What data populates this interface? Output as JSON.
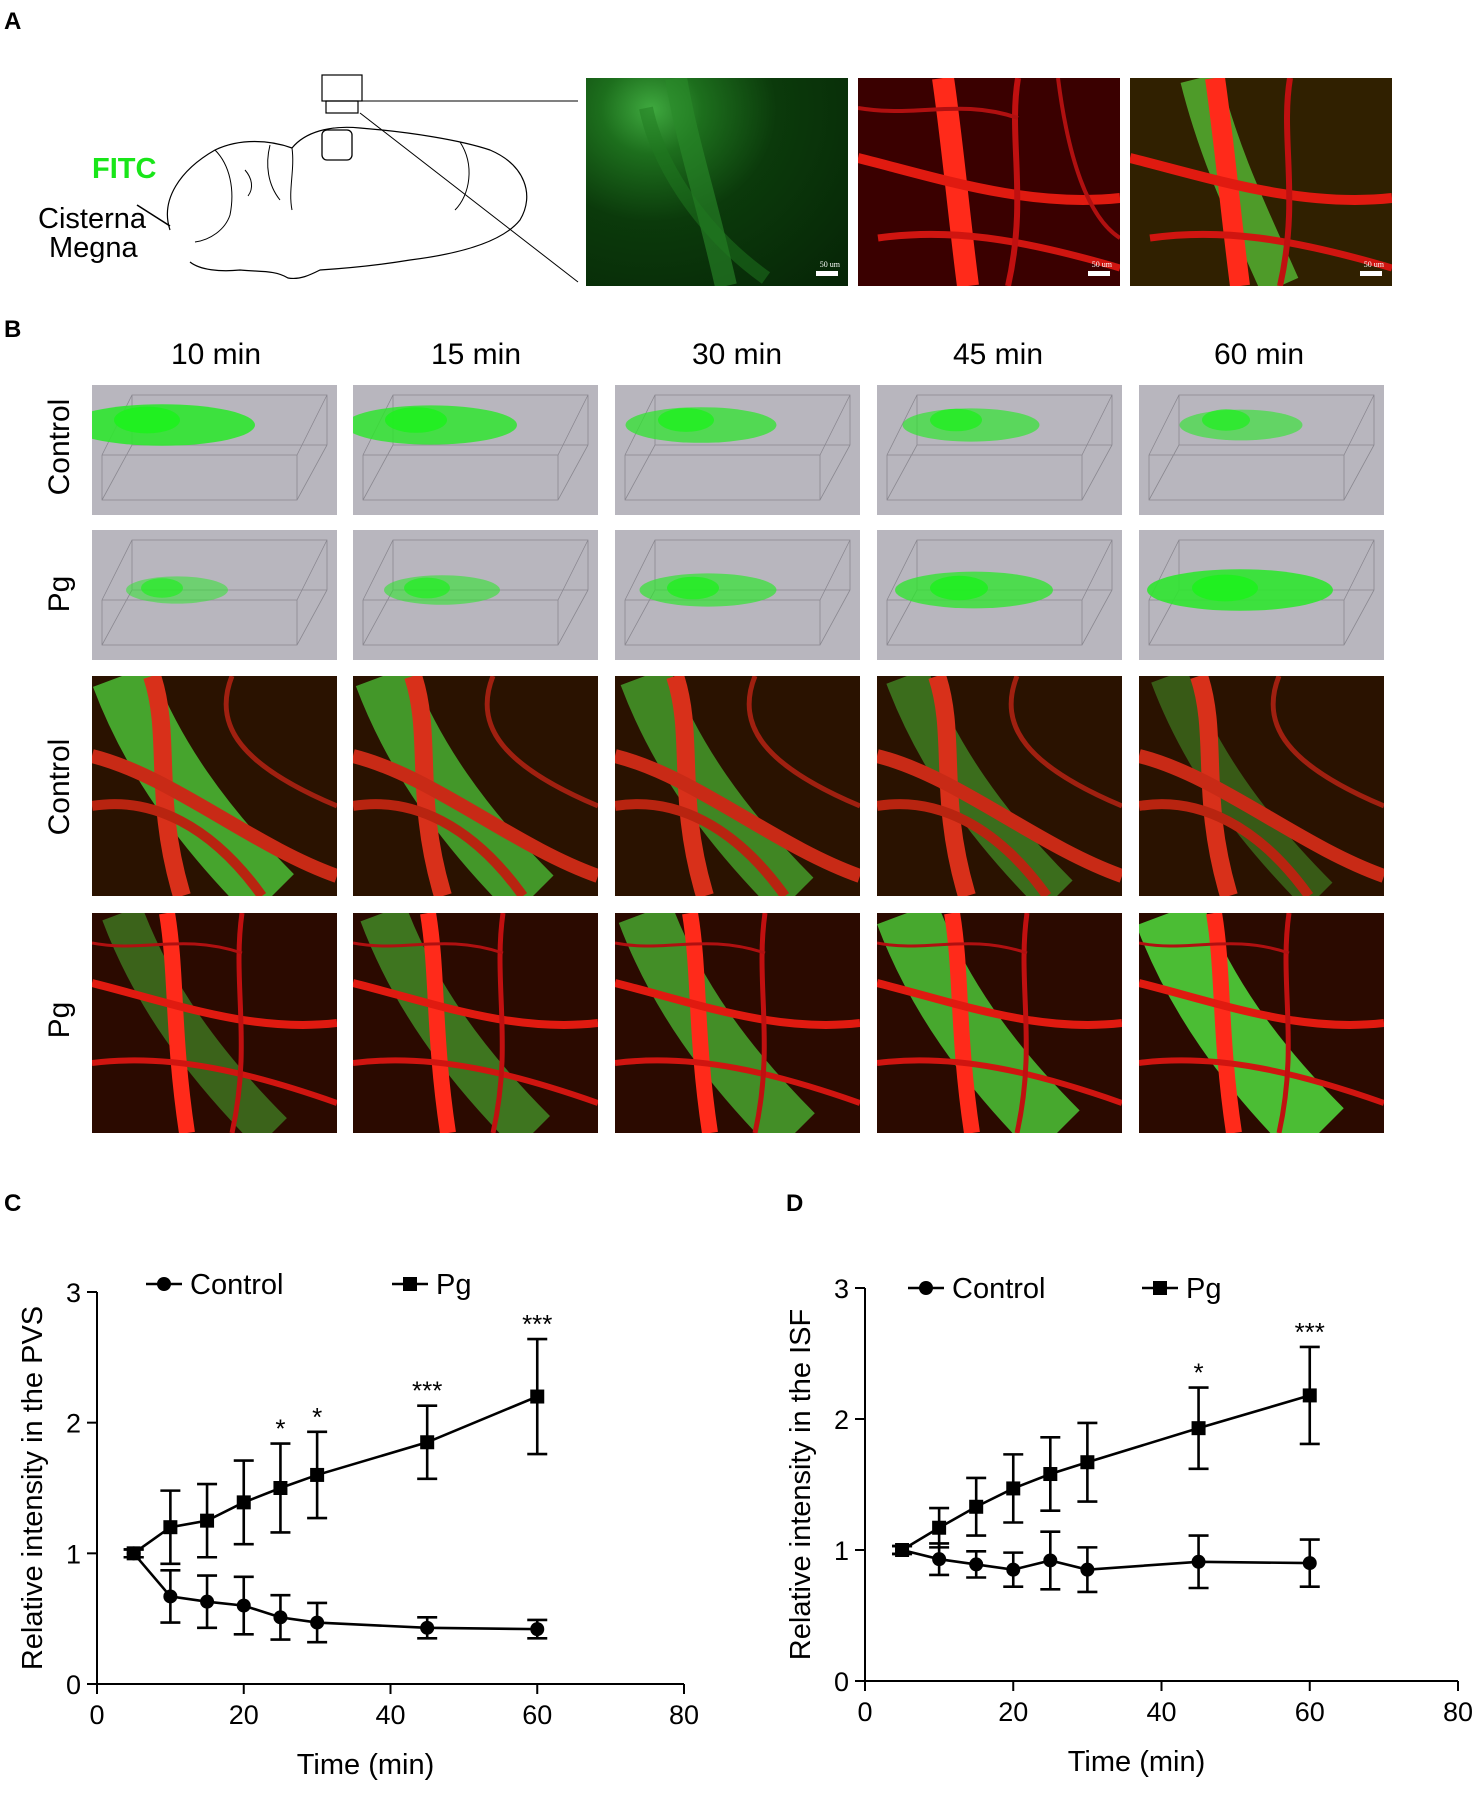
{
  "panels": {
    "a": "A",
    "b": "B",
    "c": "C",
    "d": "D"
  },
  "panel_a": {
    "fitc_label": "FITC",
    "cisterna_label_1": "Cisterna",
    "cisterna_label_2": "Megna",
    "scale_text": "50 um",
    "fitc_color": "#00e000"
  },
  "panel_b": {
    "time_points": [
      "10 min",
      "15 min",
      "30 min",
      "45 min",
      "60 min"
    ],
    "rows": [
      "Control",
      "Pg",
      "Control",
      "Pg"
    ]
  },
  "chart_data": [
    {
      "type": "line",
      "panel": "C",
      "xlabel": "Time (min)",
      "ylabel": "Relative intensity in the PVS",
      "xlim": [
        0,
        80
      ],
      "ylim": [
        0,
        3
      ],
      "xticks": [
        0,
        20,
        40,
        60,
        80
      ],
      "yticks": [
        0,
        1,
        2,
        3
      ],
      "legend": "top",
      "series": [
        {
          "name": "Control",
          "marker": "circle",
          "x": [
            5,
            10,
            15,
            20,
            25,
            30,
            45,
            60
          ],
          "y": [
            1.0,
            0.67,
            0.63,
            0.6,
            0.51,
            0.47,
            0.43,
            0.42
          ],
          "err": [
            0.03,
            0.2,
            0.2,
            0.22,
            0.17,
            0.15,
            0.08,
            0.07
          ]
        },
        {
          "name": "Pg",
          "marker": "square",
          "x": [
            5,
            10,
            15,
            20,
            25,
            30,
            45,
            60
          ],
          "y": [
            1.0,
            1.2,
            1.25,
            1.39,
            1.5,
            1.6,
            1.85,
            2.2
          ],
          "err": [
            0.03,
            0.28,
            0.28,
            0.32,
            0.34,
            0.33,
            0.28,
            0.44
          ]
        }
      ],
      "annotations": [
        {
          "x": 25,
          "text": "*"
        },
        {
          "x": 30,
          "text": "*"
        },
        {
          "x": 45,
          "text": "***"
        },
        {
          "x": 60,
          "text": "***"
        }
      ]
    },
    {
      "type": "line",
      "panel": "D",
      "xlabel": "Time (min)",
      "ylabel": "Relative intensity in the ISF",
      "xlim": [
        0,
        80
      ],
      "ylim": [
        0,
        3
      ],
      "xticks": [
        0,
        20,
        40,
        60,
        80
      ],
      "yticks": [
        0,
        1,
        2,
        3
      ],
      "legend": "top",
      "series": [
        {
          "name": "Control",
          "marker": "circle",
          "x": [
            5,
            10,
            15,
            20,
            25,
            30,
            45,
            60
          ],
          "y": [
            1.0,
            0.93,
            0.89,
            0.85,
            0.92,
            0.85,
            0.91,
            0.9
          ],
          "err": [
            0.03,
            0.12,
            0.1,
            0.13,
            0.22,
            0.17,
            0.2,
            0.18
          ]
        },
        {
          "name": "Pg",
          "marker": "square",
          "x": [
            5,
            10,
            15,
            20,
            25,
            30,
            45,
            60
          ],
          "y": [
            1.0,
            1.17,
            1.33,
            1.47,
            1.58,
            1.67,
            1.93,
            2.18
          ],
          "err": [
            0.03,
            0.15,
            0.22,
            0.26,
            0.28,
            0.3,
            0.31,
            0.37
          ]
        }
      ],
      "annotations": [
        {
          "x": 45,
          "text": "*"
        },
        {
          "x": 60,
          "text": "***"
        }
      ]
    }
  ]
}
